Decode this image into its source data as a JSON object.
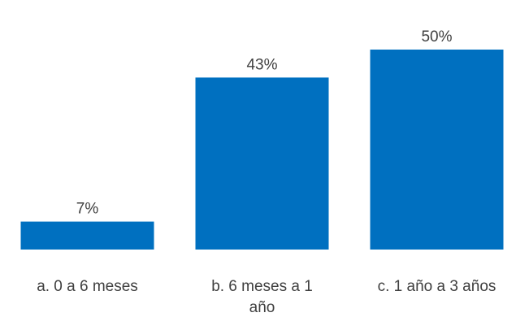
{
  "chart_data": {
    "type": "bar",
    "categories": [
      [
        "a. 0 a 6 meses"
      ],
      [
        "b. 6 meses a 1",
        "año"
      ],
      [
        "c. 1 año a 3 años"
      ]
    ],
    "values": [
      7,
      43,
      50
    ],
    "value_labels": [
      "7%",
      "43%",
      "50%"
    ],
    "unit": "%",
    "ylim": [
      0,
      50
    ],
    "grid": false,
    "legend": "none",
    "bar_color": "#0070C0"
  }
}
